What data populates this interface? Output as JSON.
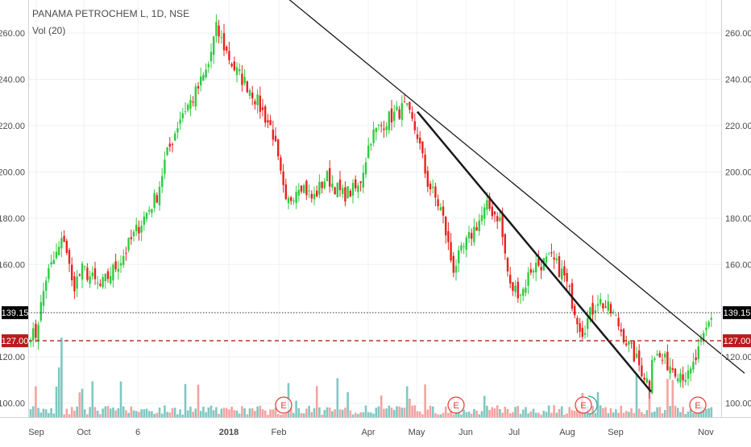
{
  "header": {
    "title": "PANAMA PETROCHEM L, 1D, NSE",
    "volume_label": "Vol (20)"
  },
  "colors": {
    "up": "#26a69a",
    "down": "#ef5350",
    "up_candle": "#2ecc40",
    "down_candle": "#e8231f",
    "vol_up": "#7fc8c0",
    "vol_down": "#f4a3a0",
    "trend_line": "#1a1a1a",
    "grid": "#eef0f3",
    "support_line": "#b71c1c",
    "price_tag_dark": "#000000",
    "price_tag_red": "#b71c1c",
    "earnings": "#e53935"
  },
  "chart_data": {
    "type": "candlestick",
    "symbol": "PANAMA PETROCHEM L",
    "interval": "1D",
    "exchange": "NSE",
    "indicator": "Vol (20)",
    "ylim": [
      92,
      272
    ],
    "y_ticks": [
      "260.00",
      "240.00",
      "220.00",
      "200.00",
      "180.00",
      "160.00",
      "120.00",
      "100.00"
    ],
    "x_ticks": [
      "Sep",
      "Oct",
      "6",
      "2018",
      "Feb",
      "Apr",
      "May",
      "Jun",
      "Jul",
      "Aug",
      "Sep",
      "Nov"
    ],
    "price_labels": [
      {
        "label": "139.15",
        "value": 139.15,
        "style": "dotted",
        "tag": "dark"
      },
      {
        "label": "127.00",
        "value": 127.0,
        "style": "dashed",
        "tag": "red"
      }
    ],
    "trend_lines": [
      {
        "from": [
          "mid Nov 2017",
          277
        ],
        "to": [
          "Nov 2018",
          113
        ],
        "width": 1.3
      },
      {
        "from": [
          "May 2018",
          226
        ],
        "to": [
          "late Sep 2018",
          105
        ],
        "width": 2.5
      }
    ],
    "earnings_markers": [
      "Feb",
      "Jun",
      "Aug",
      "Nov"
    ],
    "earnings_symbol": "E",
    "price_path": [
      [
        "late Aug 2017",
        130
      ],
      [
        "Sep 2017",
        129
      ],
      [
        "early Sep 2017",
        154
      ],
      [
        "mid Sep 2017",
        172
      ],
      [
        "late Sep 2017",
        150
      ],
      [
        "Oct 2017",
        158
      ],
      [
        "mid Oct 2017",
        150
      ],
      [
        "late Oct 2017",
        162
      ],
      [
        "early Nov 2017",
        172
      ],
      [
        "mid Nov 2017",
        190
      ],
      [
        "late Nov 2017",
        205
      ],
      [
        "early Dec 2017",
        225
      ],
      [
        "mid Dec 2017",
        232
      ],
      [
        "late Dec 2017",
        245
      ],
      [
        "2018",
        262
      ],
      [
        "mid Jan 2018",
        245
      ],
      [
        "late Jan 2018",
        235
      ],
      [
        "Feb 2018",
        218
      ],
      [
        "early Feb 2018",
        185
      ],
      [
        "mid Feb 2018",
        196
      ],
      [
        "late Feb 2018",
        188
      ],
      [
        "early Mar 2018",
        198
      ],
      [
        "mid Mar 2018",
        190
      ],
      [
        "late Mar 2018",
        193
      ],
      [
        "Apr 2018",
        215
      ],
      [
        "mid Apr 2018",
        222
      ],
      [
        "late Apr 2018",
        228
      ],
      [
        "May 2018",
        216
      ],
      [
        "mid May 2018",
        196
      ],
      [
        "late May 2018",
        183
      ],
      [
        "early Jun 2018",
        158
      ],
      [
        "Jun 2018",
        175
      ],
      [
        "mid Jun 2018",
        185
      ],
      [
        "late Jun 2018",
        180
      ],
      [
        "early Jul 2018",
        150
      ],
      [
        "Jul 2018",
        148
      ],
      [
        "mid Jul 2018",
        159
      ],
      [
        "late Jul 2018",
        162
      ],
      [
        "early Aug 2018",
        155
      ],
      [
        "Aug 2018",
        131
      ],
      [
        "mid Aug 2018",
        145
      ],
      [
        "late Aug 2018",
        138
      ],
      [
        "Sep 2018",
        125
      ],
      [
        "mid Sep 2018",
        108
      ],
      [
        "late Sep 2018",
        122
      ],
      [
        "early Oct 2018",
        118
      ],
      [
        "mid Oct 2018",
        111
      ],
      [
        "late Oct 2018",
        127
      ],
      [
        "Nov 2018",
        139.15
      ]
    ]
  }
}
